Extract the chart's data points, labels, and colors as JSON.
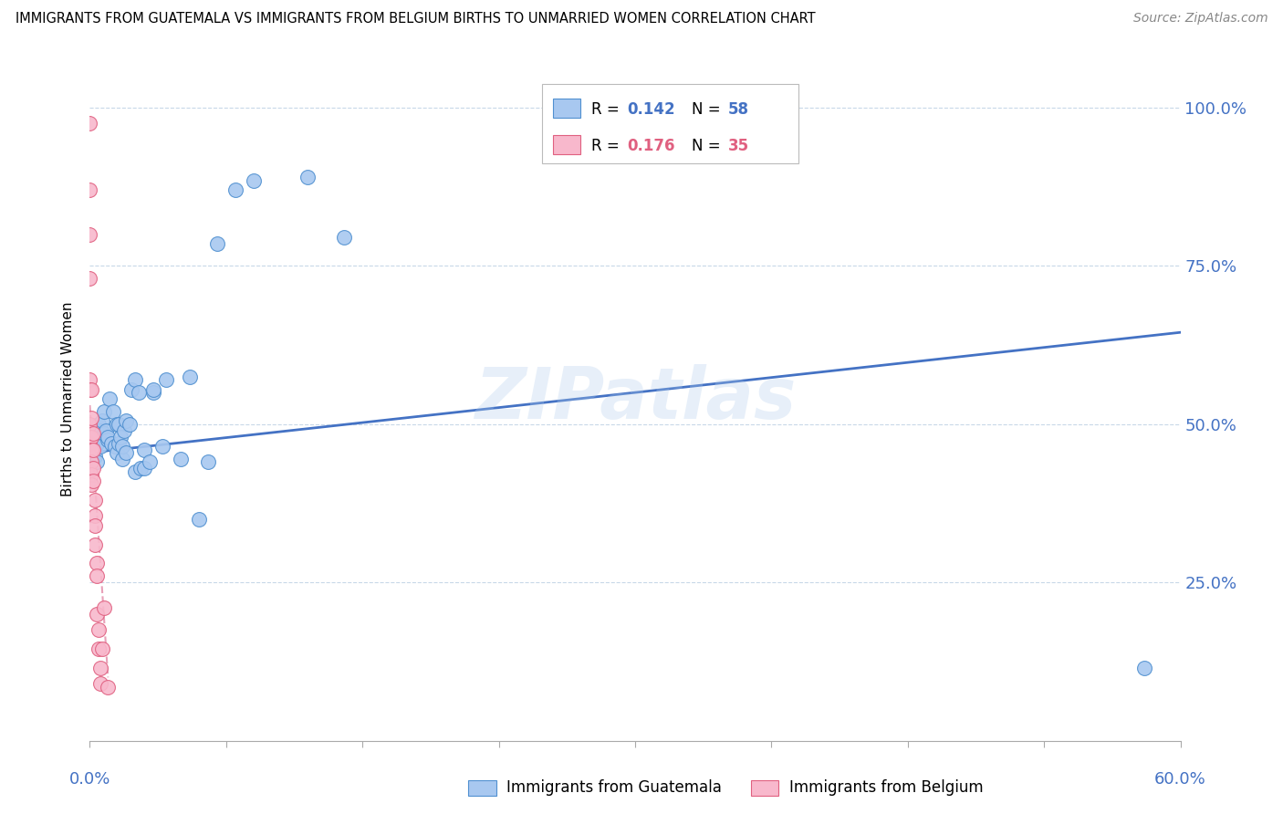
{
  "title": "IMMIGRANTS FROM GUATEMALA VS IMMIGRANTS FROM BELGIUM BIRTHS TO UNMARRIED WOMEN CORRELATION CHART",
  "source": "Source: ZipAtlas.com",
  "ylabel": "Births to Unmarried Women",
  "ytick_labels": [
    "100.0%",
    "75.0%",
    "50.0%",
    "25.0%"
  ],
  "ytick_values": [
    1.0,
    0.75,
    0.5,
    0.25
  ],
  "xlim": [
    0.0,
    0.6
  ],
  "ylim": [
    0.0,
    1.08
  ],
  "legend_r1": "0.142",
  "legend_n1": "58",
  "legend_r2": "0.176",
  "legend_n2": "35",
  "color_guatemala_fill": "#a8c8f0",
  "color_guatemala_edge": "#5090d0",
  "color_belgium_fill": "#f8b8cc",
  "color_belgium_edge": "#e06080",
  "color_trend_guatemala": "#4472c4",
  "color_trend_belgium_line": "#e8a0b8",
  "watermark": "ZIPatlas",
  "guatemala_trend_x0": 0.0,
  "guatemala_trend_y0": 0.455,
  "guatemala_trend_x1": 0.6,
  "guatemala_trend_y1": 0.645,
  "belgium_trend_x0": 0.0,
  "belgium_trend_y0": 0.53,
  "belgium_trend_x1": 0.01,
  "belgium_trend_y1": 0.1,
  "guatemala_x": [
    0.001,
    0.001,
    0.001,
    0.002,
    0.002,
    0.002,
    0.003,
    0.003,
    0.003,
    0.004,
    0.004,
    0.005,
    0.005,
    0.006,
    0.006,
    0.007,
    0.008,
    0.008,
    0.009,
    0.01,
    0.01,
    0.011,
    0.012,
    0.013,
    0.014,
    0.015,
    0.015,
    0.016,
    0.016,
    0.017,
    0.018,
    0.018,
    0.019,
    0.02,
    0.02,
    0.022,
    0.023,
    0.025,
    0.025,
    0.027,
    0.028,
    0.03,
    0.03,
    0.033,
    0.035,
    0.035,
    0.04,
    0.042,
    0.05,
    0.055,
    0.06,
    0.065,
    0.07,
    0.08,
    0.09,
    0.12,
    0.14,
    0.58
  ],
  "guatemala_y": [
    0.455,
    0.47,
    0.44,
    0.46,
    0.475,
    0.445,
    0.46,
    0.48,
    0.45,
    0.47,
    0.44,
    0.48,
    0.5,
    0.465,
    0.49,
    0.505,
    0.485,
    0.52,
    0.49,
    0.475,
    0.48,
    0.54,
    0.47,
    0.52,
    0.465,
    0.5,
    0.455,
    0.5,
    0.47,
    0.48,
    0.445,
    0.465,
    0.49,
    0.455,
    0.505,
    0.5,
    0.555,
    0.425,
    0.57,
    0.55,
    0.43,
    0.46,
    0.43,
    0.44,
    0.55,
    0.555,
    0.465,
    0.57,
    0.445,
    0.575,
    0.35,
    0.44,
    0.785,
    0.87,
    0.885,
    0.89,
    0.795,
    0.115
  ],
  "belgium_x": [
    0.0,
    0.0,
    0.0,
    0.0,
    0.0,
    0.0,
    0.0,
    0.0,
    0.0,
    0.0,
    0.001,
    0.001,
    0.001,
    0.001,
    0.001,
    0.001,
    0.001,
    0.002,
    0.002,
    0.002,
    0.002,
    0.003,
    0.003,
    0.003,
    0.003,
    0.004,
    0.004,
    0.004,
    0.005,
    0.005,
    0.006,
    0.006,
    0.007,
    0.008,
    0.01
  ],
  "belgium_y": [
    0.975,
    0.87,
    0.8,
    0.73,
    0.57,
    0.555,
    0.5,
    0.48,
    0.47,
    0.425,
    0.555,
    0.51,
    0.48,
    0.46,
    0.44,
    0.42,
    0.405,
    0.485,
    0.46,
    0.43,
    0.41,
    0.38,
    0.355,
    0.34,
    0.31,
    0.28,
    0.26,
    0.2,
    0.175,
    0.145,
    0.115,
    0.09,
    0.145,
    0.21,
    0.085
  ]
}
